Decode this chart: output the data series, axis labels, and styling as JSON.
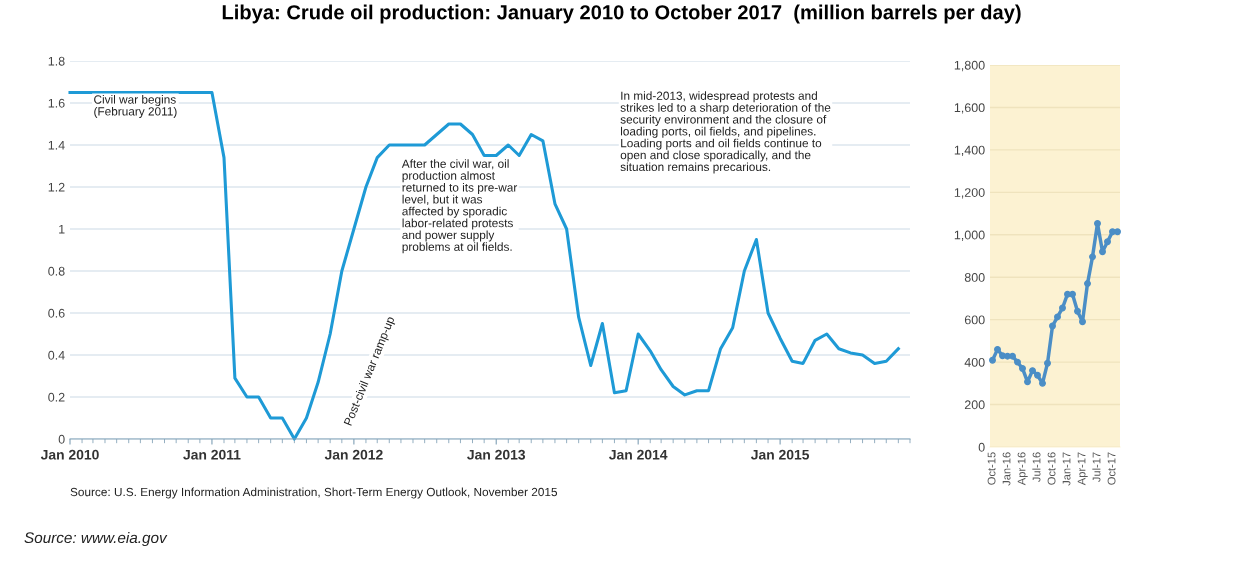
{
  "chart_data": [
    {
      "type": "line",
      "title": "Libya: Crude oil production: January 2010 to October 2017  (million barrels per day)",
      "x": [
        "2010-01",
        "2011-01",
        "2011-02",
        "2011-03",
        "2011-04",
        "2011-05",
        "2011-06",
        "2011-07",
        "2011-08",
        "2011-09",
        "2011-10",
        "2011-11",
        "2011-12",
        "2012-01",
        "2012-02",
        "2012-03",
        "2012-04",
        "2012-05",
        "2012-06",
        "2012-07",
        "2012-08",
        "2012-09",
        "2012-10",
        "2012-11",
        "2012-12",
        "2013-01",
        "2013-02",
        "2013-03",
        "2013-04",
        "2013-05",
        "2013-06",
        "2013-07",
        "2013-08",
        "2013-09",
        "2013-10",
        "2013-11",
        "2013-12",
        "2014-01",
        "2014-02",
        "2014-03",
        "2014-04",
        "2014-05",
        "2014-06",
        "2014-07",
        "2014-08",
        "2014-09",
        "2014-10",
        "2014-11",
        "2014-12",
        "2015-01",
        "2015-02",
        "2015-03",
        "2015-04",
        "2015-05",
        "2015-06",
        "2015-07",
        "2015-08",
        "2015-09",
        "2015-10",
        "2015-11"
      ],
      "series": [
        {
          "color": "#1e9ad6",
          "values": [
            1.65,
            1.65,
            1.34,
            0.29,
            0.2,
            0.2,
            0.1,
            0.1,
            0,
            0.1,
            0.27,
            0.5,
            0.8,
            1.0,
            1.2,
            1.34,
            1.4,
            1.4,
            1.4,
            1.4,
            1.45,
            1.5,
            1.5,
            1.45,
            1.35,
            1.35,
            1.4,
            1.35,
            1.45,
            1.42,
            1.12,
            1.0,
            0.58,
            0.35,
            0.55,
            0.22,
            0.23,
            0.5,
            0.42,
            0.33,
            0.25,
            0.21,
            0.23,
            0.23,
            0.43,
            0.53,
            0.8,
            0.95,
            0.6,
            0.48,
            0.37,
            0.36,
            0.47,
            0.5,
            0.43,
            0.41,
            0.4,
            0.36,
            0.37,
            0.43
          ]
        }
      ],
      "xlim": [
        "2010-01",
        "2015-12"
      ],
      "xticks": [
        {
          "value": "2010-01",
          "label": "Jan 2010"
        },
        {
          "value": "2011-01",
          "label": "Jan 2011"
        },
        {
          "value": "2012-01",
          "label": "Jan 2012"
        },
        {
          "value": "2013-01",
          "label": "Jan 2013"
        },
        {
          "value": "2014-01",
          "label": "Jan 2014"
        },
        {
          "value": "2015-01",
          "label": "Jan 2015"
        }
      ],
      "ylim": [
        0,
        1.8
      ],
      "yticks": [
        0,
        0.2,
        0.4,
        0.6,
        0.8,
        1,
        1.2,
        1.4,
        1.6,
        1.8
      ],
      "grid": "y",
      "annotations": [
        "Civil war begins\n(February 2011)",
        "Post-civil war ramp-up",
        "After the civil war, oil\nproduction almost\nreturned to its pre-war\nlevel, but it was\naffected by sporadic\nlabor-related protests\nand power supply\nproblems at oil fields.",
        "In mid-2013, widespread protests and\nstrikes led to a sharp deterioration of the\nsecurity environment and the closure of\nloading ports, oil fields, and pipelines.\nLoading ports and oil fields continue to\nopen and close sporadically, and the\nsituation remains precarious.",
        "Source: U.S. Energy Information Administration, Short-Term Energy Outlook, November 2015",
        "Source: www.eia.gov"
      ]
    },
    {
      "type": "line",
      "marker": "circle",
      "categories": [
        "Oct-15",
        null,
        null,
        "Jan-16",
        null,
        null,
        "Apr-16",
        null,
        null,
        "Jul-16",
        null,
        null,
        "Oct-16",
        null,
        null,
        "Jan-17",
        null,
        null,
        "Apr-17",
        null,
        null,
        "Jul-17",
        null,
        null,
        "Oct-17",
        null
      ],
      "series": [
        {
          "color": "#4b8ec6",
          "values": [
            409,
            460,
            430,
            428,
            428,
            400,
            370,
            307,
            360,
            338,
            300,
            395,
            570,
            613,
            655,
            720,
            720,
            640,
            590,
            770,
            896,
            1053,
            920,
            967,
            1014,
            1014
          ]
        }
      ],
      "ylim": [
        0,
        1800
      ],
      "yticks": [
        0,
        200,
        400,
        600,
        800,
        {
          "value": 1000,
          "label": "1,000"
        },
        {
          "value": 1200,
          "label": "1,200"
        },
        {
          "value": 1400,
          "label": "1,400"
        },
        {
          "value": 1600,
          "label": "1,600"
        },
        {
          "value": 1800,
          "label": "1,800"
        }
      ],
      "grid": "y"
    }
  ]
}
